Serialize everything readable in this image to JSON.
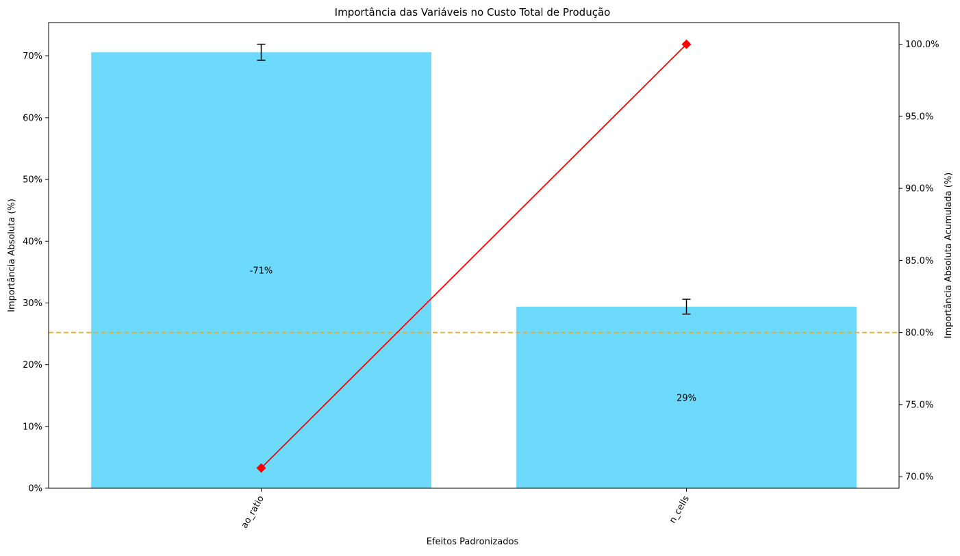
{
  "chart_data": {
    "type": "bar",
    "title": "Importância das Variáveis no Custo Total de Produção",
    "xlabel": "Efeitos Padronizados",
    "ylabel": "Importância Absoluta (%)",
    "y2label": "Importância Absoluta Acumulada (%)",
    "categories": [
      "ao_ratio",
      "n_cells"
    ],
    "series": [
      {
        "values": [
          70.6,
          29.4
        ],
        "error": [
          1.3,
          1.2
        ],
        "bar_labels": [
          "-71%",
          "29%"
        ],
        "color": "#6dd9fb",
        "axis": "left"
      },
      {
        "type": "line",
        "values": [
          70.6,
          100.0
        ],
        "marker": "diamond",
        "color": "#ff0000",
        "axis": "right"
      }
    ],
    "threshold_line": {
      "value": 80.0,
      "axis": "right",
      "style": "dashed",
      "color": "#ffa500"
    },
    "ylim": [
      0,
      75.4
    ],
    "y2lim": [
      69.2,
      101.5
    ],
    "yticks": [
      0,
      10,
      20,
      30,
      40,
      50,
      60,
      70
    ],
    "ytick_labels": [
      "0%",
      "10%",
      "20%",
      "30%",
      "40%",
      "50%",
      "60%",
      "70%"
    ],
    "y2ticks": [
      70,
      75,
      80,
      85,
      90,
      95,
      100
    ],
    "y2tick_labels": [
      "70.0%",
      "75.0%",
      "80.0%",
      "85.0%",
      "90.0%",
      "95.0%",
      "100.0%"
    ],
    "grid": false,
    "legend": "none"
  }
}
